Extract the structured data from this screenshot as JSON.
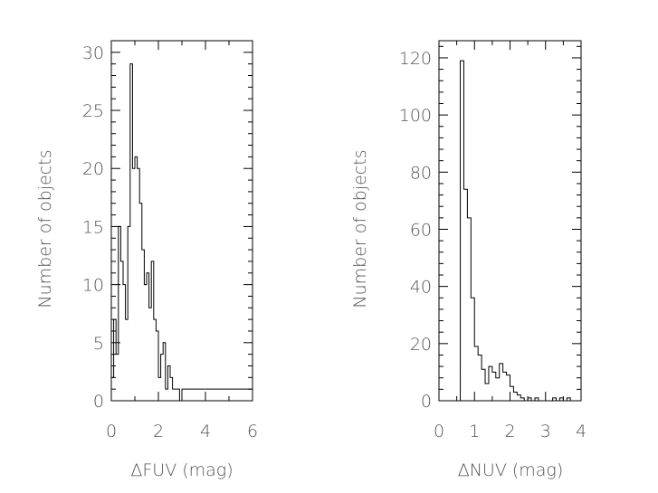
{
  "chart_data": [
    {
      "type": "histogram",
      "xlabel": "ΔFUV (mag)",
      "ylabel": "Number of objects",
      "xlim": [
        0,
        6
      ],
      "ylim": [
        0,
        31
      ],
      "xticks": [
        0,
        2,
        4,
        6
      ],
      "yticks": [
        0,
        5,
        10,
        15,
        20,
        25,
        30
      ],
      "bin_width": 0.1,
      "bin_edges_start": 0.0,
      "counts": [
        2,
        7,
        4,
        15,
        12,
        10,
        7,
        15,
        29,
        20,
        21,
        20,
        17,
        13,
        10,
        11,
        8,
        12,
        7,
        6,
        2,
        4,
        5,
        1,
        3,
        2,
        1,
        1,
        1,
        0,
        1,
        1,
        1,
        1,
        1,
        1,
        1,
        1,
        1,
        1,
        1,
        1,
        1,
        1,
        1,
        1,
        1,
        1,
        1,
        1,
        1,
        1,
        1,
        1,
        1,
        1,
        1,
        1,
        1,
        1
      ]
    },
    {
      "type": "histogram",
      "xlabel": "ΔNUV (mag)",
      "ylabel": "Number of objects",
      "xlim": [
        0,
        4
      ],
      "ylim": [
        0,
        126
      ],
      "xticks": [
        0,
        1,
        2,
        3,
        4
      ],
      "yticks": [
        0,
        20,
        40,
        60,
        80,
        100,
        120
      ],
      "bin_width": 0.1,
      "bin_edges_start": 0.6,
      "counts": [
        119,
        74,
        64,
        36,
        19,
        16,
        11,
        6,
        12,
        10,
        8,
        13,
        10,
        9,
        5,
        3,
        2,
        1,
        0,
        1,
        0,
        1,
        0,
        0,
        0,
        0,
        1,
        0,
        1,
        0,
        1,
        0
      ]
    }
  ]
}
